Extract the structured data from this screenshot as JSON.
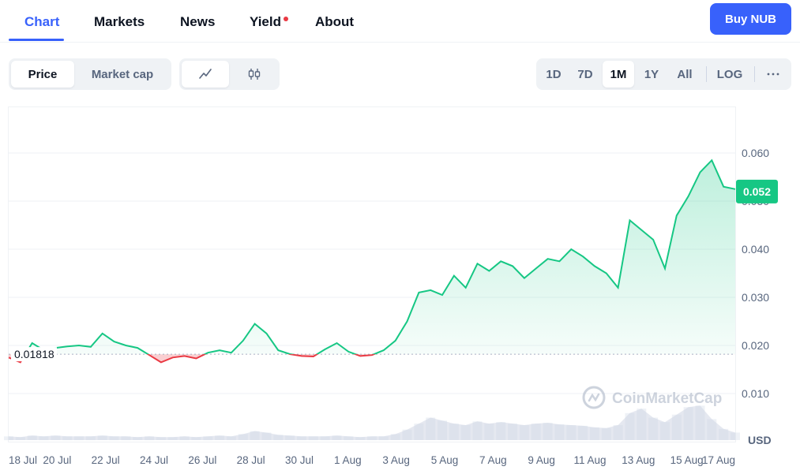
{
  "tabs": [
    {
      "label": "Chart",
      "active": true
    },
    {
      "label": "Markets"
    },
    {
      "label": "News"
    },
    {
      "label": "Yield"
    },
    {
      "label": "About"
    }
  ],
  "buy_button": "Buy NUB",
  "price_toggle": [
    "Price",
    "Market cap"
  ],
  "chart_style_icons": [
    "line-chart-icon",
    "candlestick-icon"
  ],
  "ranges": [
    "1D",
    "7D",
    "1M",
    "1Y",
    "All",
    "LOG"
  ],
  "active_range": "1M",
  "more_icon": "more-horizontal-icon",
  "watermark": "CoinMarketCap",
  "colors": {
    "accent": "#3861fb",
    "up": "#16c784",
    "down": "#ea3943"
  },
  "chart_data": {
    "type": "line",
    "title": "",
    "currency_label": "USD",
    "yticks": [
      "0.010",
      "0.020",
      "0.030",
      "0.040",
      "0.050",
      "0.060"
    ],
    "ylim": [
      0,
      0.0705
    ],
    "xticks": [
      "18 Jul",
      "20 Jul",
      "22 Jul",
      "24 Jul",
      "26 Jul",
      "28 Jul",
      "30 Jul",
      "1 Aug",
      "3 Aug",
      "5 Aug",
      "7 Aug",
      "9 Aug",
      "11 Aug",
      "13 Aug",
      "15 Aug",
      "17 Aug"
    ],
    "baseline": 0.01818,
    "baseline_label": "0.01818",
    "current_price": 0.052,
    "current_label": "0.052",
    "series": [
      {
        "x": [
          "18 Jul 00h",
          "18 Jul 12h",
          "19 Jul 00h",
          "19 Jul 12h",
          "20 Jul 00h",
          "20 Jul 12h",
          "21 Jul 00h",
          "21 Jul 12h",
          "22 Jul 00h",
          "22 Jul 12h",
          "23 Jul 00h",
          "23 Jul 12h",
          "24 Jul 00h",
          "24 Jul 12h",
          "25 Jul 00h",
          "25 Jul 12h",
          "26 Jul 00h",
          "26 Jul 12h",
          "27 Jul 00h",
          "27 Jul 12h",
          "28 Jul 00h",
          "28 Jul 12h",
          "29 Jul 00h",
          "29 Jul 12h",
          "30 Jul 00h",
          "30 Jul 12h",
          "31 Jul 00h",
          "31 Jul 12h",
          "1 Aug 00h",
          "1 Aug 12h",
          "2 Aug 00h",
          "2 Aug 12h",
          "3 Aug 00h",
          "3 Aug 12h",
          "4 Aug 00h",
          "4 Aug 12h",
          "5 Aug 00h",
          "5 Aug 12h",
          "6 Aug 00h",
          "6 Aug 12h",
          "7 Aug 00h",
          "7 Aug 12h",
          "8 Aug 00h",
          "8 Aug 12h",
          "9 Aug 00h",
          "9 Aug 12h",
          "10 Aug 00h",
          "10 Aug 12h",
          "11 Aug 00h",
          "11 Aug 12h",
          "12 Aug 00h",
          "12 Aug 12h",
          "13 Aug 00h",
          "13 Aug 12h",
          "14 Aug 00h",
          "14 Aug 12h",
          "15 Aug 00h",
          "15 Aug 12h",
          "16 Aug 00h",
          "16 Aug 12h",
          "17 Aug 00h",
          "17 Aug 12h",
          "18 Aug 00h"
        ],
        "values": [
          0.0175,
          0.0165,
          0.0205,
          0.019,
          0.0195,
          0.0198,
          0.02,
          0.0197,
          0.0225,
          0.0208,
          0.02,
          0.0195,
          0.018,
          0.0165,
          0.0175,
          0.0178,
          0.0173,
          0.0185,
          0.019,
          0.0185,
          0.021,
          0.0245,
          0.0225,
          0.019,
          0.0182,
          0.0178,
          0.0177,
          0.0192,
          0.0205,
          0.0187,
          0.0178,
          0.018,
          0.019,
          0.021,
          0.025,
          0.031,
          0.0315,
          0.0305,
          0.0345,
          0.032,
          0.037,
          0.0355,
          0.0375,
          0.0365,
          0.034,
          0.036,
          0.038,
          0.0375,
          0.04,
          0.0385,
          0.0365,
          0.035,
          0.032,
          0.046,
          0.044,
          0.042,
          0.036,
          0.047,
          0.051,
          0.056,
          0.0585,
          0.053,
          0.0525
        ],
        "volume": [
          0.05,
          0.04,
          0.06,
          0.05,
          0.06,
          0.05,
          0.05,
          0.05,
          0.06,
          0.05,
          0.05,
          0.04,
          0.05,
          0.04,
          0.04,
          0.05,
          0.04,
          0.05,
          0.06,
          0.05,
          0.08,
          0.12,
          0.1,
          0.07,
          0.06,
          0.05,
          0.05,
          0.05,
          0.06,
          0.05,
          0.04,
          0.05,
          0.05,
          0.08,
          0.14,
          0.22,
          0.3,
          0.26,
          0.22,
          0.2,
          0.25,
          0.22,
          0.24,
          0.22,
          0.2,
          0.22,
          0.23,
          0.21,
          0.2,
          0.19,
          0.17,
          0.16,
          0.2,
          0.36,
          0.42,
          0.3,
          0.24,
          0.34,
          0.44,
          0.46,
          0.28,
          0.15,
          0.1
        ]
      }
    ]
  }
}
